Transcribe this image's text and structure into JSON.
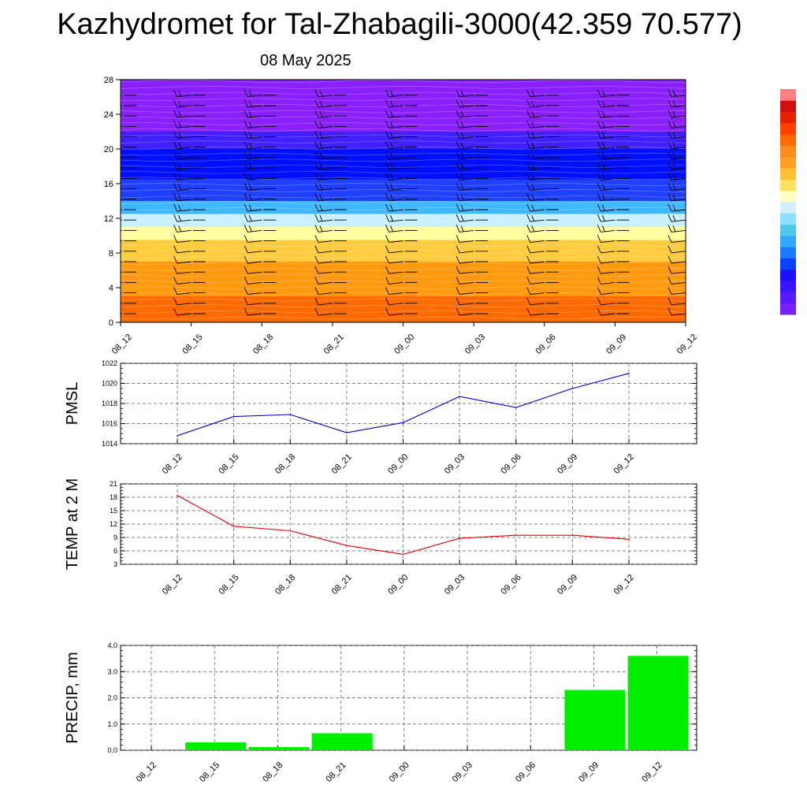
{
  "title": "Kazhydromet for Tal-Zhabagili-3000(42.359 70.577)",
  "subtitle": "08 May 2025",
  "colors": {
    "pmsl_line": "#0000cc",
    "temp_line": "#dd0000",
    "precip_bar": "#00ee00",
    "wind_barb": "#000000"
  },
  "chart_data": [
    {
      "type": "heatmap",
      "title": "",
      "x": [
        "08_12",
        "08_15",
        "08_18",
        "08_21",
        "09_00",
        "09_03",
        "09_06",
        "09_09",
        "09_12"
      ],
      "ylim": [
        0,
        28
      ],
      "yticks": [
        0,
        4,
        8,
        12,
        16,
        20,
        24,
        28
      ],
      "ylabel": "",
      "color_bands": [
        {
          "from": 0,
          "to": 3,
          "color": "#ff6a00"
        },
        {
          "from": 3,
          "to": 7,
          "color": "#ff9a10"
        },
        {
          "from": 7,
          "to": 9.5,
          "color": "#ffcc40"
        },
        {
          "from": 9.5,
          "to": 11,
          "color": "#ffffa0"
        },
        {
          "from": 11,
          "to": 12.5,
          "color": "#c8f0ff"
        },
        {
          "from": 12.5,
          "to": 14,
          "color": "#40b8ff"
        },
        {
          "from": 14,
          "to": 16.5,
          "color": "#2040ff"
        },
        {
          "from": 16.5,
          "to": 20,
          "color": "#0010ff"
        },
        {
          "from": 20,
          "to": 22,
          "color": "#4020ff"
        },
        {
          "from": 22,
          "to": 28,
          "color": "#8a20ff"
        }
      ],
      "wind_barbs": true
    },
    {
      "type": "line",
      "ylabel": "PMSL",
      "x": [
        "08_12",
        "08_15",
        "08_18",
        "08_21",
        "09_00",
        "09_03",
        "09_06",
        "09_09",
        "09_12"
      ],
      "series": [
        {
          "values": [
            1014.8,
            1016.7,
            1016.9,
            1015.1,
            1016.1,
            1018.7,
            1017.6,
            1019.5,
            1021.0
          ]
        }
      ],
      "ylim": [
        1014,
        1022
      ],
      "yticks": [
        1014,
        1016,
        1018,
        1020,
        1022
      ],
      "grid": true
    },
    {
      "type": "line",
      "ylabel": "TEMP at 2 M",
      "x": [
        "08_12",
        "08_15",
        "08_18",
        "08_21",
        "09_00",
        "09_03",
        "09_06",
        "09_09",
        "09_12"
      ],
      "series": [
        {
          "values": [
            18.4,
            11.5,
            10.5,
            7.2,
            5.2,
            8.8,
            9.5,
            9.5,
            8.6
          ]
        }
      ],
      "ylim": [
        3,
        21
      ],
      "yticks": [
        3,
        6,
        9,
        12,
        15,
        18,
        21
      ],
      "grid": true
    },
    {
      "type": "bar",
      "ylabel": "PRECIP, mm",
      "categories": [
        "08_12",
        "08_15",
        "08_18",
        "08_21",
        "09_00",
        "09_03",
        "09_06",
        "09_09",
        "09_12"
      ],
      "values": [
        0.0,
        0.3,
        0.12,
        0.65,
        0.0,
        0.0,
        0.0,
        2.3,
        3.6
      ],
      "ylim": [
        0,
        4
      ],
      "yticks": [
        "0.0",
        "1.0",
        "2.0",
        "3.0",
        "4.0"
      ],
      "grid": true
    }
  ],
  "colorbar": {
    "colors": [
      "#7a1fff",
      "#5a1aff",
      "#3a14ff",
      "#1a10ff",
      "#0a40ff",
      "#1e78ff",
      "#30a8ff",
      "#50c8f0",
      "#90e0ff",
      "#d0f0ff",
      "#ffffc0",
      "#ffe060",
      "#ffc030",
      "#ffa020",
      "#ff8a20",
      "#ff6a00",
      "#ff4000",
      "#e82000",
      "#d01010",
      "#ff8080"
    ]
  }
}
